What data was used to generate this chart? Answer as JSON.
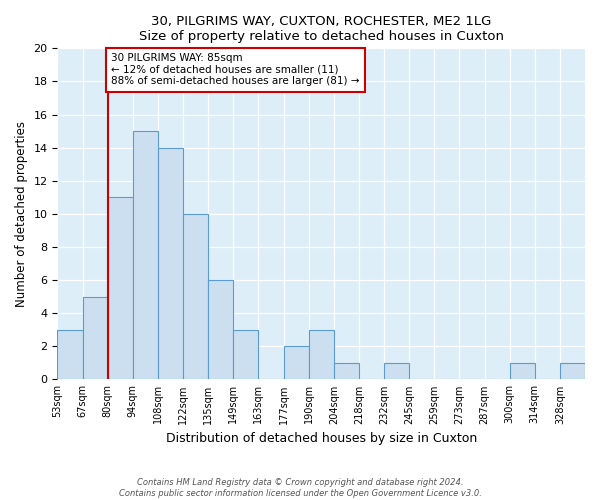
{
  "title1": "30, PILGRIMS WAY, CUXTON, ROCHESTER, ME2 1LG",
  "title2": "Size of property relative to detached houses in Cuxton",
  "xlabel": "Distribution of detached houses by size in Cuxton",
  "ylabel": "Number of detached properties",
  "bin_labels": [
    "53sqm",
    "67sqm",
    "80sqm",
    "94sqm",
    "108sqm",
    "122sqm",
    "135sqm",
    "149sqm",
    "163sqm",
    "177sqm",
    "190sqm",
    "204sqm",
    "218sqm",
    "232sqm",
    "245sqm",
    "259sqm",
    "273sqm",
    "287sqm",
    "300sqm",
    "314sqm",
    "328sqm"
  ],
  "bar_heights": [
    3,
    5,
    11,
    15,
    14,
    10,
    6,
    3,
    0,
    2,
    3,
    1,
    0,
    1,
    0,
    0,
    0,
    0,
    1,
    0,
    1
  ],
  "bar_color": "#ccdff0",
  "bar_edge_color": "#5b9bd5",
  "vline_x_index": 2,
  "vline_color": "#cc0000",
  "annotation_line1": "30 PILGRIMS WAY: 85sqm",
  "annotation_line2": "← 12% of detached houses are smaller (11)",
  "annotation_line3": "88% of semi-detached houses are larger (81) →",
  "annotation_box_color": "#ffffff",
  "annotation_box_edge_color": "#cc0000",
  "ylim": [
    0,
    20
  ],
  "yticks": [
    0,
    2,
    4,
    6,
    8,
    10,
    12,
    14,
    16,
    18,
    20
  ],
  "footer1": "Contains HM Land Registry data © Crown copyright and database right 2024.",
  "footer2": "Contains public sector information licensed under the Open Government Licence v3.0.",
  "fig_bg_color": "#ffffff",
  "plot_bg_color": "#ddeef8"
}
